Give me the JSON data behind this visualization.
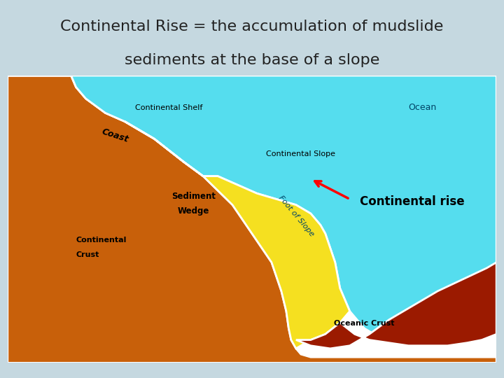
{
  "title_line1": "Continental Rise = the accumulation of mudslide",
  "title_line2": "sediments at the base of a slope",
  "title_fontsize": 16,
  "title_color": "#222222",
  "bg_color": "#c5d8e0",
  "diagram_bg": "#ffffff",
  "continental_crust_color": "#c8600a",
  "coast_color": "#2d8a00",
  "shelf_color": "#55ddee",
  "sediment_wedge_color": "#f5e020",
  "oceanic_crust_color": "#9b1a00",
  "labels": {
    "coast": "Coast",
    "continental_shelf": "Continental Shelf",
    "continental_slope": "Continental Slope",
    "sediment_wedge_line1": "Sediment",
    "sediment_wedge_line2": "Wedge",
    "continental_crust_line1": "Continental",
    "continental_crust_line2": "Crust",
    "oceanic_crust": "Oceanic Crust",
    "ocean": "Ocean",
    "foot_of_slope": "Foot of Slope",
    "continental_rise": "Continental rise"
  }
}
